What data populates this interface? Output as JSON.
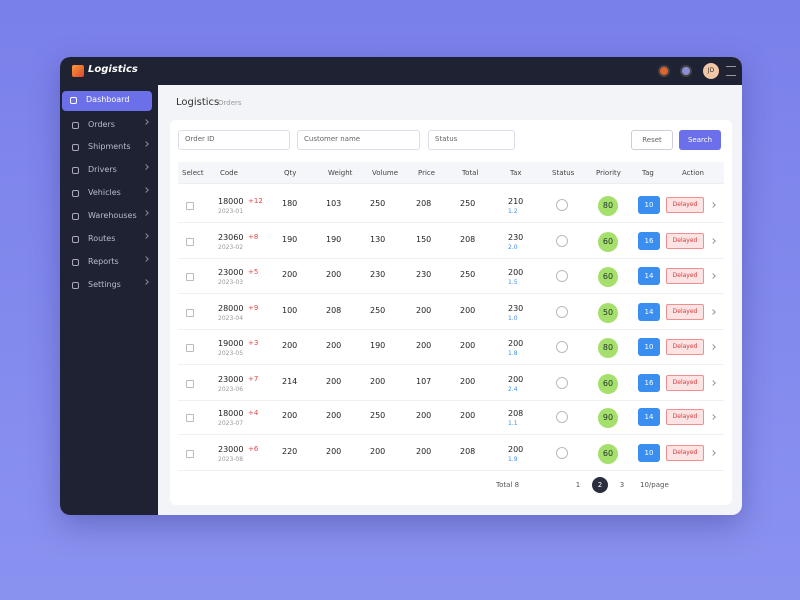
{
  "app": {
    "brand": "Logistics",
    "user_initials": "JD"
  },
  "sidebar": {
    "items": [
      "Dashboard",
      "Orders",
      "Shipments",
      "Drivers",
      "Vehicles",
      "Warehouses",
      "Routes",
      "Reports",
      "Settings"
    ]
  },
  "header": {
    "title": "Logistics",
    "subtitle": "Orders"
  },
  "filters": {
    "inputs": [
      "Order ID",
      "Customer name",
      "Status"
    ],
    "reset": "Reset",
    "search": "Search"
  },
  "table": {
    "columns": [
      "Select",
      "Code",
      "Qty",
      "Weight",
      "Volume",
      "Price",
      "Total",
      "Tax",
      "Status",
      "Priority",
      "Tag",
      "Action"
    ],
    "rows": [
      {
        "code": "18000",
        "flag": "+12",
        "sub": "2023-01",
        "qty": "180",
        "weight": "103",
        "vol": "250",
        "price": "208",
        "total": "250",
        "tax": "210",
        "tax_sub": "1.2",
        "score": "80",
        "badge": "10",
        "tag": "Delayed"
      },
      {
        "code": "23060",
        "flag": "+8",
        "sub": "2023-02",
        "qty": "190",
        "weight": "190",
        "vol": "130",
        "price": "150",
        "total": "208",
        "tax": "230",
        "tax_sub": "2.0",
        "score": "60",
        "badge": "16",
        "tag": "Delayed"
      },
      {
        "code": "23000",
        "flag": "+5",
        "sub": "2023-03",
        "qty": "200",
        "weight": "200",
        "vol": "230",
        "price": "230",
        "total": "250",
        "tax": "200",
        "tax_sub": "1.5",
        "score": "60",
        "badge": "14",
        "tag": "Delayed"
      },
      {
        "code": "28000",
        "flag": "+9",
        "sub": "2023-04",
        "qty": "100",
        "weight": "208",
        "vol": "250",
        "price": "200",
        "total": "200",
        "tax": "230",
        "tax_sub": "1.0",
        "score": "50",
        "badge": "14",
        "tag": "Delayed"
      },
      {
        "code": "19000",
        "flag": "+3",
        "sub": "2023-05",
        "qty": "200",
        "weight": "200",
        "vol": "190",
        "price": "200",
        "total": "200",
        "tax": "200",
        "tax_sub": "1.8",
        "score": "80",
        "badge": "10",
        "tag": "Delayed"
      },
      {
        "code": "23000",
        "flag": "+7",
        "sub": "2023-06",
        "qty": "214",
        "weight": "200",
        "vol": "200",
        "price": "107",
        "total": "200",
        "tax": "200",
        "tax_sub": "2.4",
        "score": "60",
        "badge": "16",
        "tag": "Delayed"
      },
      {
        "code": "18000",
        "flag": "+4",
        "sub": "2023-07",
        "qty": "200",
        "weight": "200",
        "vol": "250",
        "price": "200",
        "total": "200",
        "tax": "208",
        "tax_sub": "1.1",
        "score": "90",
        "badge": "14",
        "tag": "Delayed"
      },
      {
        "code": "23000",
        "flag": "+6",
        "sub": "2023-08",
        "qty": "220",
        "weight": "200",
        "vol": "200",
        "price": "200",
        "total": "208",
        "tax": "200",
        "tax_sub": "1.9",
        "score": "60",
        "badge": "10",
        "tag": "Delayed"
      }
    ]
  },
  "pagination": {
    "total": "Total 8",
    "pages": [
      "1",
      "2",
      "3"
    ],
    "per_page": "10/page"
  }
}
